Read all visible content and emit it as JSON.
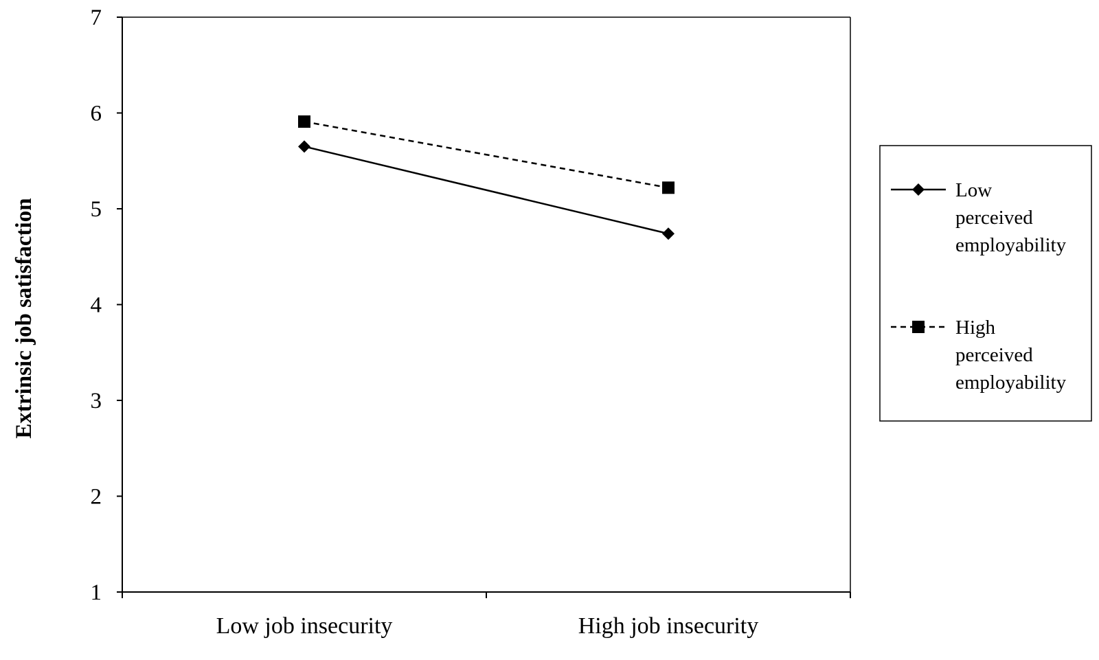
{
  "chart_data": {
    "type": "line",
    "ylabel": "Extrinsic job satisfaction",
    "xlabel": "",
    "categories": [
      "Low job insecurity",
      "High job insecurity"
    ],
    "ylim": [
      1,
      7
    ],
    "yticks": [
      "1",
      "2",
      "3",
      "4",
      "5",
      "6",
      "7"
    ],
    "grid": false,
    "legend_position": "right",
    "series": [
      {
        "name": "Low perceived employability",
        "legend_lines": [
          "Low",
          "perceived",
          "employability"
        ],
        "values": [
          5.65,
          4.74
        ],
        "marker": "diamond",
        "line_style": "solid",
        "color": "#000000"
      },
      {
        "name": "High perceived employability",
        "legend_lines": [
          "High",
          "perceived",
          "employability"
        ],
        "values": [
          5.91,
          5.22
        ],
        "marker": "square",
        "line_style": "dashed",
        "color": "#000000"
      }
    ]
  }
}
